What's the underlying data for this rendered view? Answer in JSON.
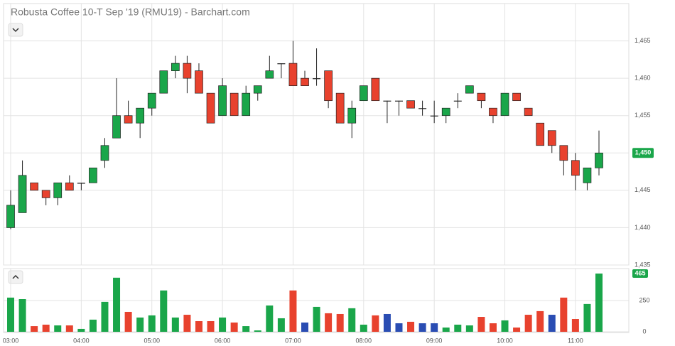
{
  "chart_data": {
    "type": "candlestick",
    "title": "Robusta Coffee 10-T Sep '19 (RMU19) - Barchart.com",
    "categories": [
      "03:00",
      null,
      null,
      null,
      null,
      null,
      "04:00",
      null,
      null,
      null,
      null,
      null,
      "05:00",
      null,
      null,
      null,
      null,
      null,
      "06:00",
      null,
      null,
      null,
      null,
      null,
      "07:00",
      null,
      null,
      null,
      null,
      null,
      "08:00",
      null,
      null,
      null,
      null,
      null,
      "09:00",
      null,
      null,
      null,
      null,
      null,
      "10:00",
      null,
      null,
      null,
      null,
      null,
      "11:00",
      null,
      null
    ],
    "open": [
      1440,
      1442,
      1446,
      1445,
      1444,
      1446,
      1446,
      1446,
      1449,
      1452,
      1455,
      1454,
      1456,
      1458,
      1461,
      1462,
      1461,
      1458,
      1455,
      1458,
      1455,
      1458,
      1460,
      1462,
      1462,
      1460,
      1460,
      1461,
      1458,
      1454,
      1457,
      1460,
      1457,
      1457,
      1457,
      1456,
      1455,
      1455,
      1457,
      1458,
      1458,
      1456,
      1455,
      1458,
      1456,
      1454,
      1453,
      1451,
      1449,
      1446,
      1448
    ],
    "high": [
      1445,
      1449,
      1446,
      1445,
      1446,
      1447,
      1446,
      1448,
      1452,
      1460,
      1457,
      1456,
      1458,
      1461,
      1463,
      1463,
      1462,
      1458,
      1460,
      1458,
      1459,
      1459,
      1463,
      1462,
      1465,
      1461,
      1464,
      1461,
      1458,
      1457,
      1459,
      1460,
      1457,
      1457,
      1457,
      1457,
      1457,
      1456,
      1458,
      1459,
      1458,
      1456,
      1458,
      1458,
      1456,
      1454,
      1453,
      1451,
      1450,
      1448,
      1453
    ],
    "low": [
      1439.8,
      1442,
      1445,
      1443,
      1443,
      1445,
      1445,
      1446,
      1448,
      1452,
      1454,
      1452,
      1455,
      1458,
      1460,
      1458,
      1458,
      1454,
      1455,
      1455,
      1455,
      1457,
      1460,
      1460,
      1459,
      1459,
      1459,
      1456,
      1454,
      1452,
      1457,
      1457,
      1454,
      1455,
      1456,
      1455,
      1454,
      1454,
      1456,
      1458,
      1456,
      1454,
      1455,
      1457,
      1455,
      1451,
      1450,
      1447,
      1445,
      1445,
      1447
    ],
    "close": [
      1443,
      1447,
      1445,
      1444,
      1446,
      1445,
      1446,
      1448,
      1451,
      1455,
      1454,
      1456,
      1458,
      1461,
      1462,
      1460,
      1458,
      1454,
      1459,
      1455,
      1458,
      1459,
      1461,
      1462,
      1459,
      1459,
      1460,
      1457,
      1454,
      1456,
      1459,
      1457,
      1457,
      1457,
      1456,
      1456,
      1455,
      1456,
      1457,
      1459,
      1457,
      1455,
      1458,
      1457,
      1455,
      1451,
      1451,
      1449,
      1447,
      1448,
      1450
    ],
    "up_color": "#1aa64a",
    "down_color": "#e8422e",
    "last_price": {
      "value": 1450,
      "label": "1,450"
    },
    "ylim": [
      1435,
      1470
    ],
    "yticks": [
      {
        "value": 1435,
        "label": "1,435"
      },
      {
        "value": 1440,
        "label": "1,440"
      },
      {
        "value": 1445,
        "label": "1,445"
      },
      {
        "value": 1450,
        "label": "1,450"
      },
      {
        "value": 1455,
        "label": "1,455"
      },
      {
        "value": 1460,
        "label": "1,460"
      },
      {
        "value": 1465,
        "label": "1,465"
      }
    ],
    "volume": {
      "values": [
        273,
        261,
        45,
        57,
        51,
        51,
        23,
        97,
        239,
        432,
        159,
        114,
        131,
        330,
        114,
        136,
        85,
        85,
        114,
        74,
        45,
        11,
        210,
        108,
        330,
        74,
        199,
        148,
        142,
        188,
        57,
        131,
        142,
        68,
        80,
        68,
        68,
        34,
        57,
        51,
        119,
        68,
        91,
        34,
        136,
        165,
        136,
        273,
        102,
        222,
        465
      ],
      "colors": [
        "#1aa64a",
        "#1aa64a",
        "#e8422e",
        "#e8422e",
        "#1aa64a",
        "#e8422e",
        "#1aa64a",
        "#1aa64a",
        "#1aa64a",
        "#1aa64a",
        "#e8422e",
        "#1aa64a",
        "#1aa64a",
        "#1aa64a",
        "#1aa64a",
        "#e8422e",
        "#e8422e",
        "#e8422e",
        "#1aa64a",
        "#e8422e",
        "#1aa64a",
        "#1aa64a",
        "#1aa64a",
        "#1aa64a",
        "#e8422e",
        "#2a4db3",
        "#1aa64a",
        "#e8422e",
        "#e8422e",
        "#1aa64a",
        "#1aa64a",
        "#e8422e",
        "#2a4db3",
        "#2a4db3",
        "#e8422e",
        "#2a4db3",
        "#2a4db3",
        "#1aa64a",
        "#1aa64a",
        "#1aa64a",
        "#e8422e",
        "#e8422e",
        "#1aa64a",
        "#e8422e",
        "#e8422e",
        "#e8422e",
        "#2a4db3",
        "#e8422e",
        "#e8422e",
        "#1aa64a",
        "#1aa64a"
      ],
      "ylim": [
        0,
        505
      ],
      "yticks": [
        0,
        250
      ]
    },
    "grid": true
  }
}
